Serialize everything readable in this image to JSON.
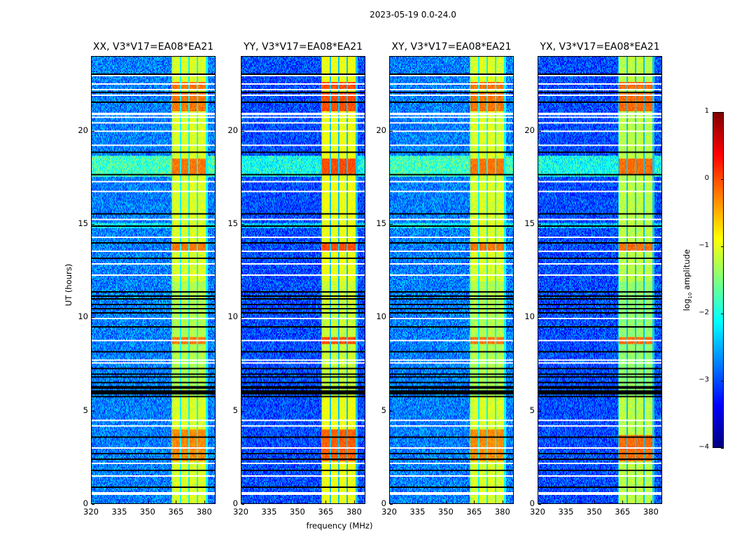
{
  "figure": {
    "suptitle": "2023-05-19 0.0-24.0",
    "ylabel": "UT (hours)",
    "xlabel": "frequency (MHz)",
    "colorbar": {
      "label_prefix": "log",
      "label_sub": "10",
      "label_suffix": " amplitude",
      "min": -4,
      "max": 1,
      "ticks": [
        1,
        0,
        -1,
        -2,
        -3,
        -4
      ],
      "tick_labels": [
        "1",
        "0",
        "−1",
        "−2",
        "−3",
        "−4"
      ],
      "colormap": "jet"
    }
  },
  "chart_data": {
    "type": "heatmap",
    "title": "2023-05-19 0.0-24.0",
    "xlabel": "frequency (MHz)",
    "ylabel": "UT (hours)",
    "xlim": [
      320,
      386
    ],
    "ylim": [
      0,
      24
    ],
    "xticks": [
      320,
      335,
      350,
      365,
      380
    ],
    "xtick_labels": [
      "320",
      "335",
      "350",
      "365",
      "380"
    ],
    "yticks": [
      0,
      5,
      10,
      15,
      20
    ],
    "ytick_labels": [
      "0",
      "5",
      "10",
      "15",
      "20"
    ],
    "colorbar_range": [
      -4,
      1
    ],
    "colorbar_label": "log10 amplitude",
    "panels": [
      {
        "name": "XX",
        "title": "XX, V3*V17=EA08*EA21",
        "baseline": -2.75,
        "band_level": -1.05,
        "hot_level": -0.35
      },
      {
        "name": "YY",
        "title": "YY, V3*V17=EA08*EA21",
        "baseline": -3.0,
        "band_level": -0.95,
        "hot_level": -0.15
      },
      {
        "name": "XY",
        "title": "XY, V3*V17=EA08*EA21",
        "baseline": -2.75,
        "band_level": -1.05,
        "hot_level": -0.35
      },
      {
        "name": "YX",
        "title": "YX, V3*V17=EA08*EA21",
        "baseline": -3.0,
        "band_level": -1.2,
        "hot_level": -0.3
      }
    ],
    "signal_band_mhz": [
      362.5,
      382
    ],
    "subband_edges_mhz": [
      362.5,
      367.5,
      372,
      376.5,
      381.5
    ],
    "flagged_white_hours": [
      0.5,
      0.6,
      1.5,
      2.2,
      3.0,
      4.2,
      4.5,
      7.6,
      7.7,
      8.8,
      10.0,
      12.3,
      12.9,
      13.6,
      14.3,
      15.3,
      16.8,
      17.3,
      19.3,
      20.0,
      20.5,
      20.8,
      20.9,
      21.0,
      22.0,
      22.3,
      22.6,
      23.0
    ],
    "flagged_black_hours": [
      0.9,
      1.8,
      2.4,
      2.7,
      3.6,
      5.8,
      5.9,
      6.0,
      6.1,
      6.2,
      6.3,
      6.5,
      6.8,
      7.0,
      7.3,
      8.2,
      9.5,
      10.3,
      10.5,
      10.7,
      11.0,
      11.2,
      11.4,
      13.2,
      14.0,
      14.9,
      15.6,
      17.7,
      18.9,
      21.6,
      22.1,
      23.1
    ],
    "bright_rfi_hours": [
      2.5,
      2.8,
      3.2,
      3.5,
      8.8,
      13.8,
      17.9,
      18.1,
      18.4,
      21.3,
      21.5,
      21.9,
      22.5
    ]
  }
}
